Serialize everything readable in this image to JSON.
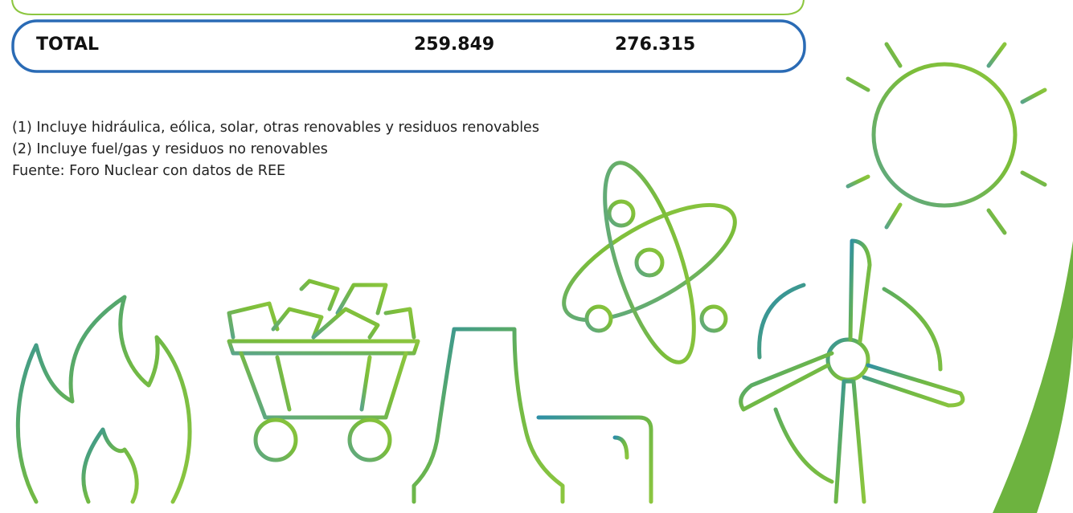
{
  "table": {
    "total_row": [
      "TOTAL",
      "259.849",
      "276.315"
    ]
  },
  "notes": [
    "(1) Incluye hidráulica, eólica, solar, otras renovables y residuos renovables",
    "(2) Incluye fuel/gas y residuos no renovables",
    "Fuente: Foro Nuclear con datos de REE"
  ]
}
